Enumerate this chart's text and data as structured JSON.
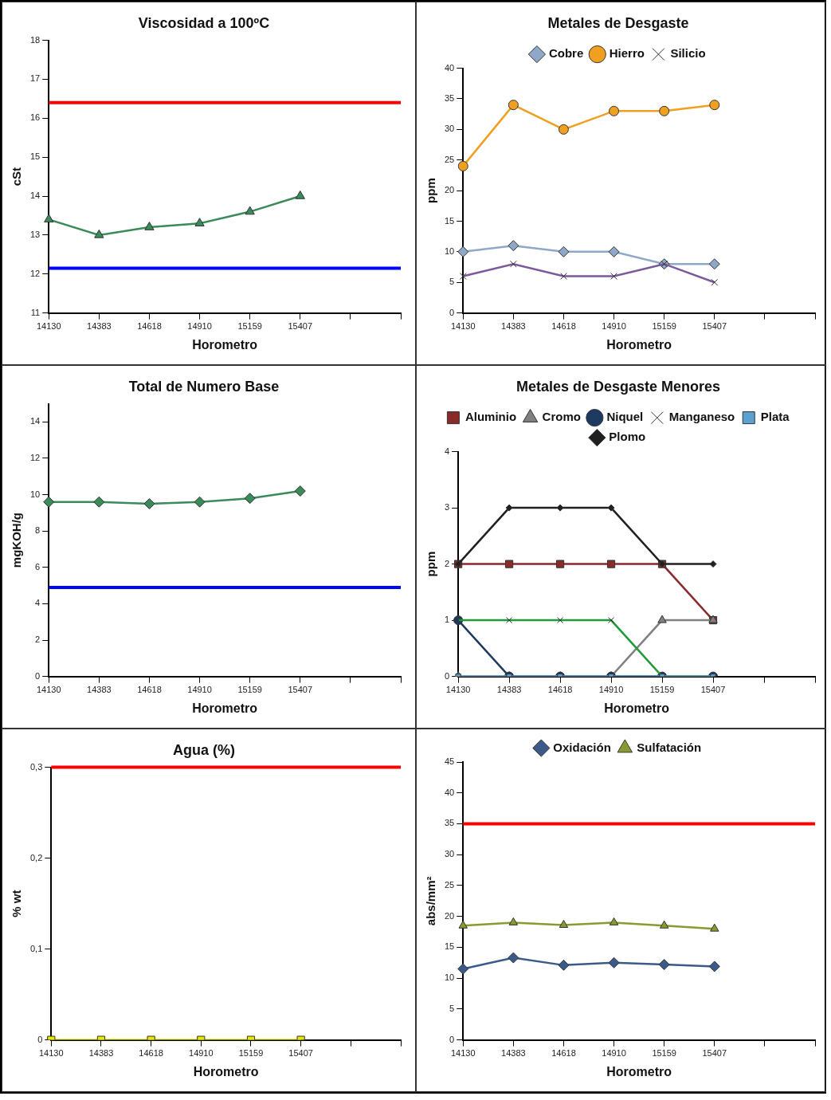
{
  "chart_data": [
    {
      "type": "line",
      "title": "Viscosidad a 100ºC",
      "xlabel": "Horometro",
      "ylabel": "cSt",
      "categories": [
        "14130",
        "14383",
        "14618",
        "14910",
        "15159",
        "15407",
        null,
        null
      ],
      "ylim": [
        11,
        18
      ],
      "yticks": [
        11,
        12,
        13,
        14,
        15,
        16,
        17,
        18
      ],
      "grid": false,
      "legend": false,
      "marker": "triangle",
      "series": [
        {
          "color": "#3a8a5a",
          "values": [
            13.4,
            13.0,
            13.2,
            13.3,
            13.6,
            14.0,
            null,
            null
          ]
        }
      ],
      "ref_lines": [
        {
          "axis": "y",
          "value": 16.4,
          "color": "#ff0000"
        },
        {
          "axis": "y",
          "value": 12.15,
          "color": "#0000ff"
        }
      ]
    },
    {
      "type": "line",
      "title": "Metales de Desgaste",
      "xlabel": "Horometro",
      "ylabel": "ppm",
      "categories": [
        "14130",
        "14383",
        "14618",
        "14910",
        "15159",
        "15407",
        null,
        null
      ],
      "ylim": [
        0,
        40
      ],
      "yticks": [
        0,
        5,
        10,
        15,
        20,
        25,
        30,
        35,
        40
      ],
      "grid": false,
      "legend": "top",
      "series": [
        {
          "name": "Cobre",
          "color": "#8fa8c8",
          "marker": "diamond",
          "values": [
            10,
            11,
            10,
            10,
            8,
            8,
            null,
            null
          ]
        },
        {
          "name": "Hierro",
          "color": "#f0a020",
          "marker": "circle",
          "values": [
            24,
            34,
            30,
            33,
            33,
            34,
            null,
            null
          ]
        },
        {
          "name": "Silicio",
          "color": "#7a5a9a",
          "marker": "cross",
          "values": [
            6,
            8,
            6,
            6,
            8,
            5,
            null,
            null
          ]
        }
      ]
    },
    {
      "type": "line",
      "title": "Total de Numero Base",
      "xlabel": "Horometro",
      "ylabel": "mgKOH/g",
      "categories": [
        "14130",
        "14383",
        "14618",
        "14910",
        "15159",
        "15407",
        null,
        null
      ],
      "ylim": [
        0,
        15
      ],
      "yticks": [
        0,
        2,
        4,
        6,
        8,
        10,
        12,
        14
      ],
      "grid": false,
      "legend": false,
      "marker": "diamond",
      "series": [
        {
          "color": "#3a8a5a",
          "values": [
            9.6,
            9.6,
            9.5,
            9.6,
            9.8,
            10.2,
            null,
            null
          ]
        }
      ],
      "ref_lines": [
        {
          "axis": "y",
          "value": 4.9,
          "color": "#0000ff"
        }
      ]
    },
    {
      "type": "line",
      "title": "Metales de Desgaste Menores",
      "xlabel": "Horometro",
      "ylabel": "ppm",
      "categories": [
        "14130",
        "14383",
        "14618",
        "14910",
        "15159",
        "15407",
        null,
        null
      ],
      "ylim": [
        0,
        4
      ],
      "yticks": [
        0,
        1,
        2,
        3,
        4
      ],
      "grid": false,
      "legend": "top",
      "series": [
        {
          "name": "Aluminio",
          "color": "#8b2a2a",
          "marker": "square",
          "values": [
            2,
            2,
            2,
            2,
            2,
            1,
            null,
            null
          ]
        },
        {
          "name": "Cromo",
          "color": "#808080",
          "marker": "triangle",
          "values": [
            0,
            0,
            0,
            0,
            1,
            1,
            null,
            null
          ]
        },
        {
          "name": "Niquel",
          "color": "#1f3a60",
          "marker": "circle",
          "values": [
            1,
            0,
            0,
            0,
            0,
            0,
            null,
            null
          ]
        },
        {
          "name": "Manganeso",
          "color": "#1f9a3a",
          "marker": "cross",
          "values": [
            1,
            1,
            1,
            1,
            0,
            0,
            null,
            null
          ]
        },
        {
          "name": "Plata",
          "color": "#5aa0d0",
          "marker": "square",
          "values": [
            0,
            0,
            0,
            0,
            0,
            0,
            null,
            null
          ]
        },
        {
          "name": "Plomo",
          "color": "#202020",
          "marker": "diamond",
          "values": [
            2,
            3,
            3,
            3,
            2,
            2,
            null,
            null
          ]
        }
      ]
    },
    {
      "type": "line",
      "title": "Agua (%)",
      "xlabel": "Horometro",
      "ylabel": "% wt",
      "categories": [
        "14130",
        "14383",
        "14618",
        "14910",
        "15159",
        "15407",
        null,
        null
      ],
      "ylim": [
        0,
        0.3
      ],
      "yticks": [
        0,
        {
          "value": 0.1,
          "label": "0,1"
        },
        {
          "value": 0.2,
          "label": "0,2"
        },
        {
          "value": 0.3,
          "label": "0,3"
        }
      ],
      "grid": false,
      "legend": false,
      "marker": "square",
      "series": [
        {
          "color": "#e8e800",
          "values": [
            0,
            0,
            0,
            0,
            0,
            0,
            null,
            null
          ]
        }
      ],
      "ref_lines": [
        {
          "axis": "y",
          "value": 0.3,
          "color": "#ff0000"
        }
      ]
    },
    {
      "type": "line",
      "xlabel": "Horometro",
      "ylabel": "abs/mm²",
      "categories": [
        "14130",
        "14383",
        "14618",
        "14910",
        "15159",
        "15407",
        null,
        null
      ],
      "ylim": [
        0,
        45
      ],
      "yticks": [
        0,
        5,
        10,
        15,
        20,
        25,
        30,
        35,
        40,
        45
      ],
      "grid": false,
      "legend": "top",
      "series": [
        {
          "name": "Oxidación",
          "color": "#3a5a8a",
          "marker": "diamond",
          "values": [
            11.5,
            13.3,
            12.1,
            12.5,
            12.2,
            11.9,
            null,
            null
          ]
        },
        {
          "name": "Sulfatación",
          "color": "#8a9a30",
          "marker": "triangle",
          "values": [
            18.5,
            19,
            18.6,
            19,
            18.5,
            18,
            null,
            null
          ]
        }
      ],
      "ref_lines": [
        {
          "axis": "y",
          "value": 35,
          "color": "#ff0000"
        }
      ]
    }
  ]
}
